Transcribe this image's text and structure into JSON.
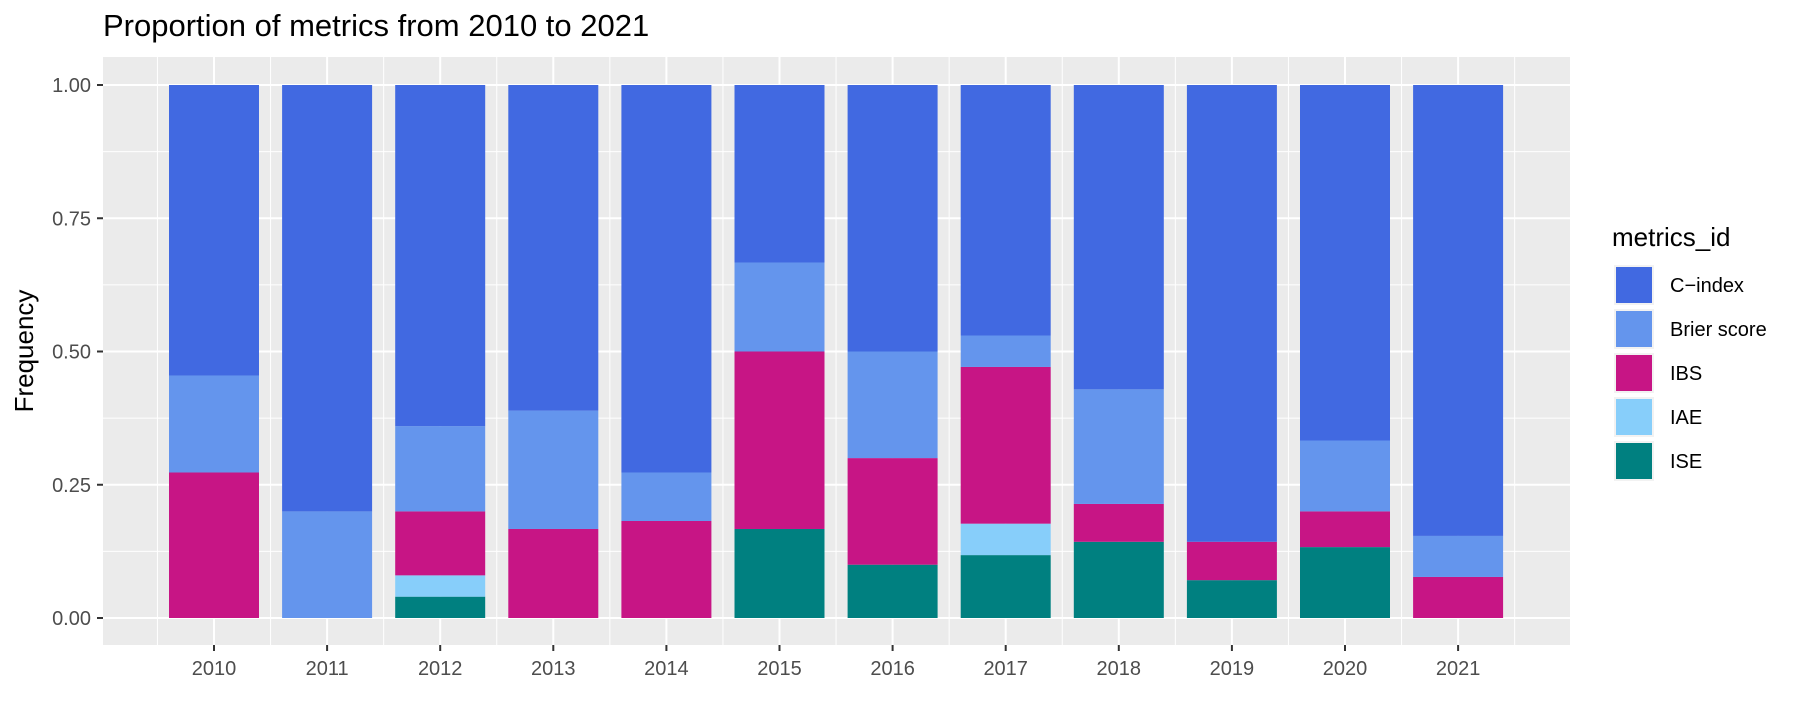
{
  "chart_data": {
    "type": "bar",
    "stacked": true,
    "title": "Proportion of metrics from 2010 to 2021",
    "xlabel": "",
    "ylabel": "Frequency",
    "ylim": [
      0,
      1
    ],
    "yticks": [
      "0.00",
      "0.25",
      "0.50",
      "0.75",
      "1.00"
    ],
    "categories": [
      "2010",
      "2011",
      "2012",
      "2013",
      "2014",
      "2015",
      "2016",
      "2017",
      "2018",
      "2019",
      "2020",
      "2021"
    ],
    "legend": {
      "title": "metrics_id",
      "position": "right"
    },
    "grid": true,
    "series": [
      {
        "name": "ISE",
        "color": "#008080",
        "values": [
          0,
          0,
          0.04,
          0,
          0,
          0.167,
          0.1,
          0.118,
          0.143,
          0.071,
          0.133,
          0
        ]
      },
      {
        "name": "IAE",
        "color": "#87CEFA",
        "values": [
          0,
          0,
          0.04,
          0,
          0,
          0,
          0,
          0.059,
          0,
          0,
          0,
          0
        ]
      },
      {
        "name": "IBS",
        "color": "#C71585",
        "values": [
          0.273,
          0,
          0.12,
          0.167,
          0.182,
          0.333,
          0.2,
          0.294,
          0.071,
          0.072,
          0.067,
          0.077
        ]
      },
      {
        "name": "Brier score",
        "color": "#6495ED",
        "values": [
          0.182,
          0.2,
          0.16,
          0.222,
          0.091,
          0.167,
          0.2,
          0.059,
          0.215,
          0,
          0.133,
          0.077
        ]
      },
      {
        "name": "C−index",
        "color": "#4169E1",
        "values": [
          0.545,
          0.8,
          0.64,
          0.611,
          0.727,
          0.333,
          0.5,
          0.47,
          0.571,
          0.857,
          0.667,
          0.846
        ]
      }
    ],
    "legend_order": [
      "C−index",
      "Brier score",
      "IBS",
      "IAE",
      "ISE"
    ]
  }
}
